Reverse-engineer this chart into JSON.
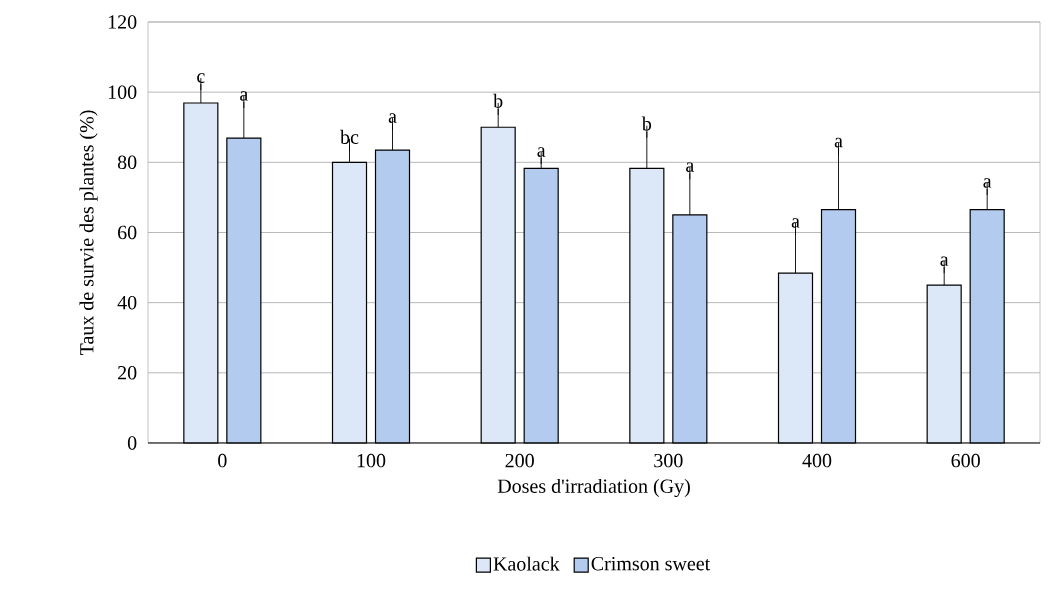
{
  "chart_data": {
    "type": "bar",
    "xlabel": "Doses d'irradiation (Gy)",
    "ylabel": "Taux de survie des plantes (%)",
    "categories": [
      "0",
      "100",
      "200",
      "300",
      "400",
      "600"
    ],
    "series": [
      {
        "name": "Kaolack",
        "color": "#dce7f7",
        "values": [
          96.9,
          80,
          90,
          78.3,
          48.4,
          45
        ],
        "errors": [
          [
            96.9,
            102.3
          ],
          [
            80,
            84.9
          ],
          [
            90,
            95.2
          ],
          [
            78.3,
            88.7
          ],
          [
            48.4,
            61
          ],
          [
            45,
            50.1
          ]
        ],
        "value_labels": [
          "c",
          "bc",
          "b",
          "b",
          "a",
          "a"
        ]
      },
      {
        "name": "Crimson sweet",
        "color": "#b3cbee",
        "values": [
          86.9,
          83.5,
          78.3,
          65,
          66.5,
          66.5
        ],
        "errors": [
          [
            86.9,
            97.2
          ],
          [
            83.5,
            90.9
          ],
          [
            78.3,
            81.2
          ],
          [
            65,
            76.9
          ],
          [
            66.5,
            83.9
          ],
          [
            66.5,
            72.4
          ]
        ],
        "value_labels": [
          "a",
          "a",
          "a",
          "a",
          "a",
          "a"
        ]
      }
    ],
    "ylim": [
      0,
      120
    ],
    "yticks": [
      0,
      20,
      40,
      60,
      80,
      100,
      120
    ],
    "grid": "y",
    "legend": "bottom"
  }
}
